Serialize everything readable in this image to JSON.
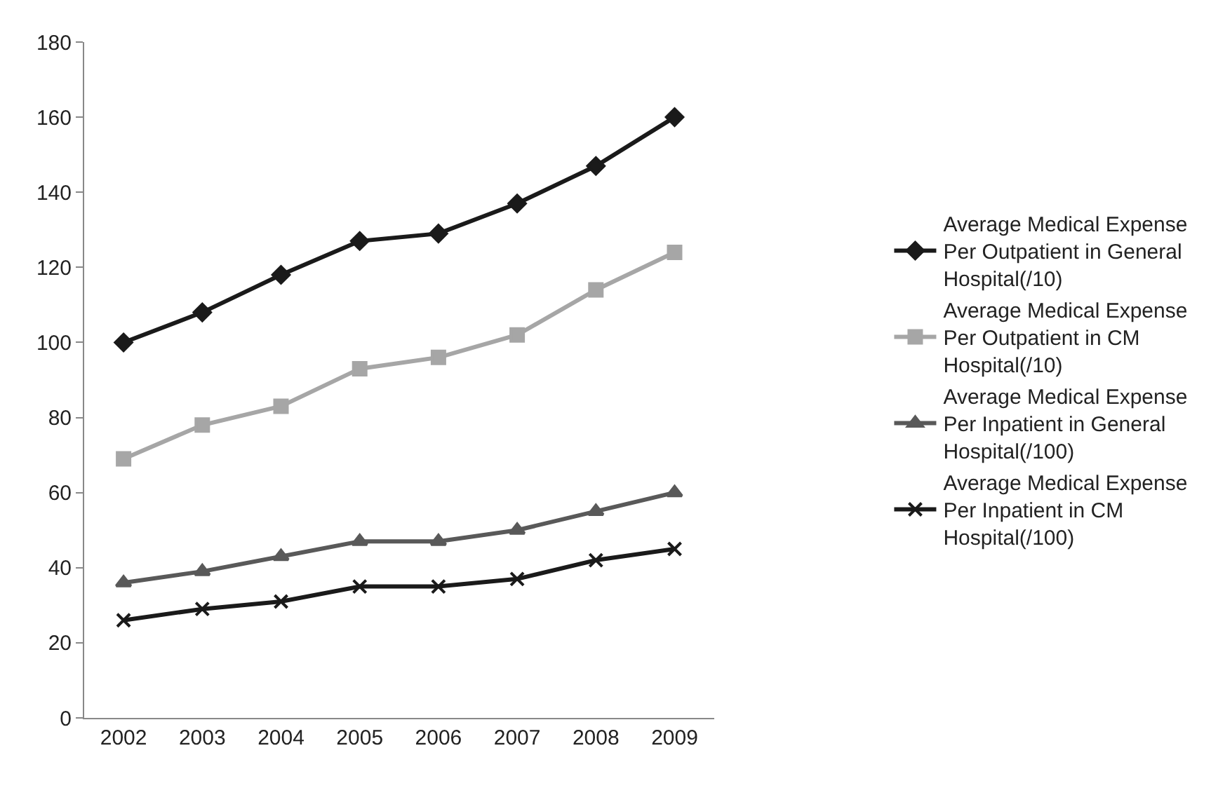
{
  "chart_data": {
    "type": "line",
    "categories": [
      "2002",
      "2003",
      "2004",
      "2005",
      "2006",
      "2007",
      "2008",
      "2009"
    ],
    "series": [
      {
        "name": "Average Medical Expense Per Outpatient in General Hospital(/10)",
        "color": "#1a1a1a",
        "marker": "diamond",
        "values": [
          100,
          108,
          118,
          127,
          129,
          137,
          147,
          160
        ]
      },
      {
        "name": "Average Medical Expense Per Outpatient in CM Hospital(/10)",
        "color": "#a6a6a6",
        "marker": "square",
        "values": [
          69,
          78,
          83,
          93,
          96,
          102,
          114,
          124
        ]
      },
      {
        "name": "Average Medical Expense Per Inpatient in General Hospital(/100)",
        "color": "#595959",
        "marker": "triangle",
        "values": [
          36,
          39,
          43,
          47,
          47,
          50,
          55,
          60
        ]
      },
      {
        "name": "Average Medical Expense Per Inpatient in CM Hospital(/100)",
        "color": "#1a1a1a",
        "marker": "cross",
        "values": [
          26,
          29,
          31,
          35,
          35,
          37,
          42,
          45
        ]
      }
    ],
    "ylim": [
      0,
      180
    ],
    "yticks": [
      0,
      20,
      40,
      60,
      80,
      100,
      120,
      140,
      160,
      180
    ],
    "legend": "right",
    "line_style": "solid"
  }
}
